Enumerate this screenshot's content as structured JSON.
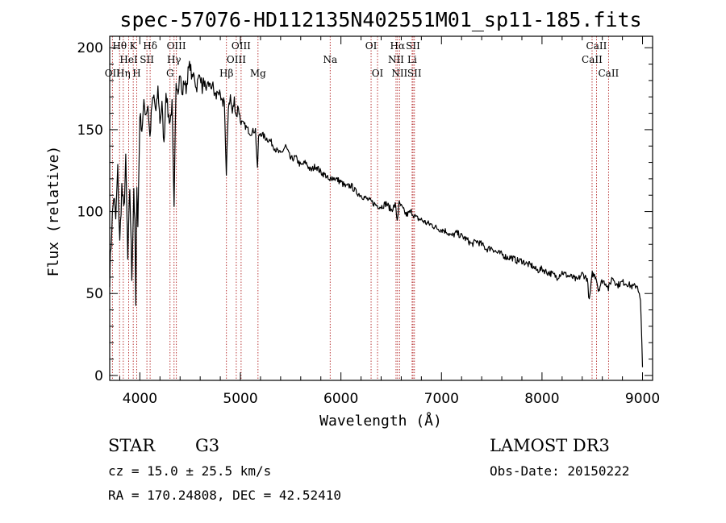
{
  "chart_data": {
    "type": "line",
    "title": "spec-57076-HD112135N402551M01_sp11-185.fits",
    "xlabel": "Wavelength (Å)",
    "ylabel": "Flux (relative)",
    "xlim": [
      3700,
      9100
    ],
    "ylim": [
      -3,
      207
    ],
    "xticks": [
      4000,
      5000,
      6000,
      7000,
      8000,
      9000
    ],
    "yticks": [
      0,
      50,
      100,
      150,
      200
    ],
    "series": [
      {
        "name": "spectrum",
        "color": "#000000",
        "x": [
          3700,
          3720,
          3740,
          3760,
          3780,
          3800,
          3820,
          3840,
          3860,
          3880,
          3900,
          3920,
          3940,
          3950,
          3960,
          3970,
          3980,
          4000,
          4020,
          4040,
          4060,
          4080,
          4100,
          4120,
          4140,
          4160,
          4180,
          4200,
          4220,
          4240,
          4260,
          4280,
          4300,
          4320,
          4340,
          4360,
          4380,
          4400,
          4420,
          4440,
          4460,
          4480,
          4500,
          4520,
          4540,
          4560,
          4580,
          4600,
          4620,
          4640,
          4660,
          4680,
          4700,
          4720,
          4740,
          4760,
          4780,
          4800,
          4820,
          4840,
          4860,
          4880,
          4900,
          4920,
          4940,
          4960,
          4980,
          5000,
          5050,
          5100,
          5150,
          5170,
          5180,
          5200,
          5250,
          5300,
          5350,
          5400,
          5450,
          5500,
          5550,
          5600,
          5650,
          5700,
          5750,
          5800,
          5850,
          5890,
          5900,
          5950,
          6000,
          6050,
          6100,
          6150,
          6200,
          6250,
          6300,
          6350,
          6400,
          6450,
          6500,
          6540,
          6560,
          6570,
          6580,
          6600,
          6650,
          6700,
          6750,
          6800,
          6850,
          6900,
          6950,
          7000,
          7050,
          7100,
          7150,
          7200,
          7250,
          7300,
          7350,
          7400,
          7450,
          7500,
          7550,
          7600,
          7650,
          7700,
          7750,
          7800,
          7850,
          7900,
          7950,
          8000,
          8050,
          8100,
          8150,
          8200,
          8250,
          8300,
          8350,
          8400,
          8450,
          8470,
          8500,
          8540,
          8560,
          8600,
          8640,
          8660,
          8700,
          8750,
          8800,
          8850,
          8900,
          8950,
          8980,
          9000
        ],
        "y": [
          60,
          90,
          110,
          95,
          125,
          80,
          115,
          100,
          130,
          70,
          115,
          60,
          115,
          90,
          40,
          120,
          90,
          160,
          150,
          165,
          160,
          165,
          145,
          165,
          170,
          160,
          175,
          155,
          165,
          140,
          175,
          160,
          155,
          165,
          100,
          180,
          175,
          185,
          170,
          180,
          175,
          185,
          190,
          180,
          185,
          175,
          180,
          185,
          175,
          180,
          170,
          180,
          175,
          178,
          172,
          170,
          175,
          168,
          165,
          170,
          120,
          165,
          170,
          160,
          168,
          158,
          165,
          155,
          152,
          148,
          150,
          125,
          145,
          148,
          145,
          143,
          138,
          135,
          140,
          132,
          133,
          128,
          130,
          125,
          128,
          124,
          122,
          118,
          121,
          120,
          118,
          115,
          116,
          112,
          110,
          108,
          106,
          104,
          103,
          105,
          101,
          104,
          95,
          100,
          105,
          103,
          98,
          100,
          96,
          95,
          93,
          92,
          90,
          89,
          88,
          85,
          87,
          85,
          83,
          80,
          82,
          80,
          77,
          78,
          75,
          74,
          72,
          72,
          70,
          70,
          68,
          67,
          64,
          65,
          63,
          62,
          60,
          63,
          61,
          60,
          58,
          62,
          59,
          45,
          62,
          60,
          52,
          58,
          56,
          53,
          60,
          55,
          57,
          56,
          54,
          55,
          45,
          5
        ]
      }
    ],
    "spectral_lines": [
      {
        "name": "OII",
        "wl": 3727,
        "row": 2
      },
      {
        "name": "Hθ",
        "wl": 3798,
        "row": 0
      },
      {
        "name": "Hη",
        "wl": 3835,
        "row": 2
      },
      {
        "name": "HeI",
        "wl": 3889,
        "row": 1
      },
      {
        "name": "K",
        "wl": 3934,
        "row": 0
      },
      {
        "name": "H",
        "wl": 3969,
        "row": 2
      },
      {
        "name": "SII",
        "wl": 4070,
        "row": 1
      },
      {
        "name": "Hδ",
        "wl": 4102,
        "row": 0
      },
      {
        "name": "G",
        "wl": 4300,
        "row": 2
      },
      {
        "name": "Hγ",
        "wl": 4340,
        "row": 1
      },
      {
        "name": "OIII",
        "wl": 4363,
        "row": 0
      },
      {
        "name": "Hβ",
        "wl": 4861,
        "row": 2
      },
      {
        "name": "OIII",
        "wl": 4959,
        "row": 1
      },
      {
        "name": "OIII",
        "wl": 5007,
        "row": 0
      },
      {
        "name": "Mg",
        "wl": 5175,
        "row": 2
      },
      {
        "name": "Na",
        "wl": 5893,
        "row": 1
      },
      {
        "name": "OI",
        "wl": 6300,
        "row": 0
      },
      {
        "name": "OI",
        "wl": 6364,
        "row": 2
      },
      {
        "name": "NII",
        "wl": 6548,
        "row": 1
      },
      {
        "name": "Hα",
        "wl": 6563,
        "row": 0
      },
      {
        "name": "NII",
        "wl": 6583,
        "row": 2
      },
      {
        "name": "Li",
        "wl": 6708,
        "row": 1
      },
      {
        "name": "SII",
        "wl": 6717,
        "row": 0
      },
      {
        "name": "SII",
        "wl": 6731,
        "row": 2
      },
      {
        "name": "CaII",
        "wl": 8498,
        "row": 1
      },
      {
        "name": "CaII",
        "wl": 8542,
        "row": 0
      },
      {
        "name": "CaII",
        "wl": 8662,
        "row": 2
      }
    ],
    "colors": {
      "line": "#000000",
      "marker": "#b22222"
    }
  },
  "info": {
    "class": "STAR",
    "subclass": "G3",
    "survey": "LAMOST DR3",
    "cz": "cz = 15.0 ± 25.5 km/s",
    "obs_date": "Obs-Date: 20150222",
    "coords": "RA = 170.24808, DEC =  42.52410"
  }
}
